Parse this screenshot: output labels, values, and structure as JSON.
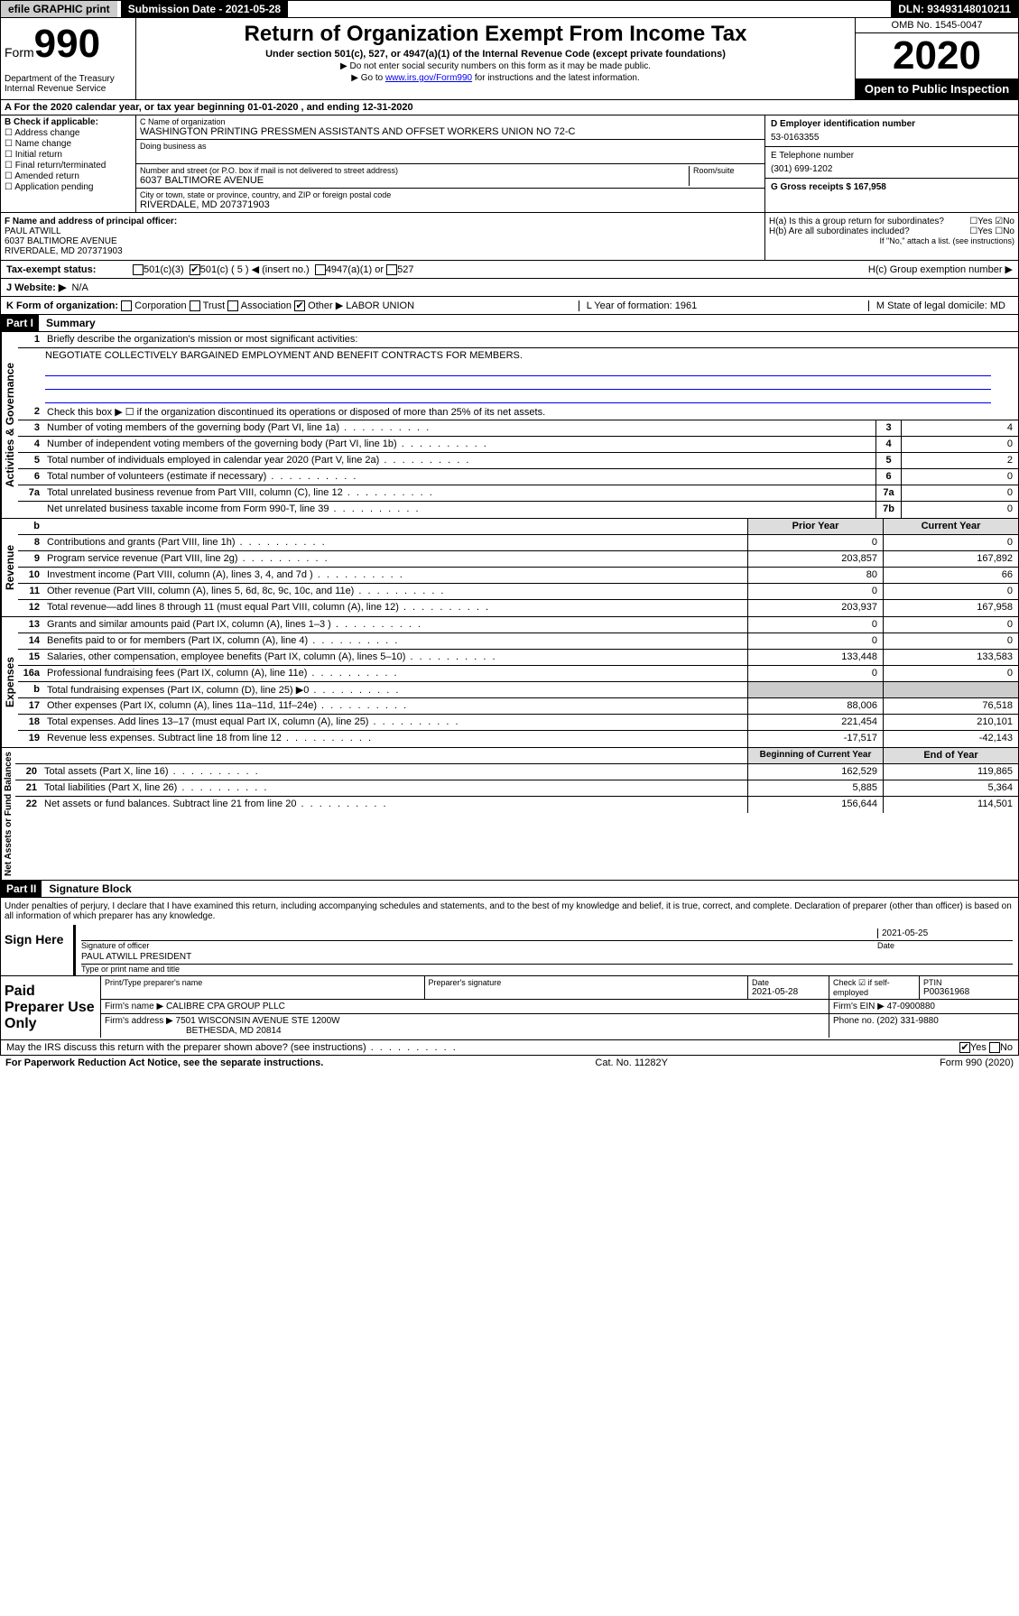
{
  "top": {
    "efile": "efile GRAPHIC print",
    "subdate_lbl": "Submission Date - 2021-05-28",
    "dln": "DLN: 93493148010211"
  },
  "hdr": {
    "form": "Form",
    "n990": "990",
    "title": "Return of Organization Exempt From Income Tax",
    "sub": "Under section 501(c), 527, or 4947(a)(1) of the Internal Revenue Code (except private foundations)",
    "note1": "▶ Do not enter social security numbers on this form as it may be made public.",
    "note2_a": "▶ Go to ",
    "note2_link": "www.irs.gov/Form990",
    "note2_b": " for instructions and the latest information.",
    "dept": "Department of the Treasury\nInternal Revenue Service",
    "omb": "OMB No. 1545-0047",
    "year": "2020",
    "open": "Open to Public Inspection"
  },
  "a": "A   For the 2020 calendar year, or tax year beginning 01-01-2020    , and ending 12-31-2020",
  "b": {
    "hdr": "B Check if applicable:",
    "items": [
      "Address change",
      "Name change",
      "Initial return",
      "Final return/terminated",
      "Amended return",
      "Application pending"
    ]
  },
  "c": {
    "name_lbl": "C Name of organization",
    "name": "WASHINGTON PRINTING PRESSMEN ASSISTANTS AND OFFSET WORKERS UNION NO 72-C",
    "dba_lbl": "Doing business as",
    "addr_lbl": "Number and street (or P.O. box if mail is not delivered to street address)",
    "room_lbl": "Room/suite",
    "addr": "6037 BALTIMORE AVENUE",
    "city_lbl": "City or town, state or province, country, and ZIP or foreign postal code",
    "city": "RIVERDALE, MD  207371903"
  },
  "r": {
    "d_lbl": "D Employer identification number",
    "d": "53-0163355",
    "e_lbl": "E Telephone number",
    "e": "(301) 699-1202",
    "g": "G Gross receipts $ 167,958"
  },
  "f": {
    "lbl": "F  Name and address of principal officer:",
    "name": "PAUL ATWILL",
    "addr": "6037 BALTIMORE AVENUE",
    "city": "RIVERDALE, MD  207371903"
  },
  "h": {
    "a": "H(a)  Is this a group return for subordinates?",
    "b": "H(b)  Are all subordinates included?",
    "note": "If \"No,\" attach a list. (see instructions)",
    "c": "H(c)  Group exemption number ▶"
  },
  "tax": {
    "lbl": "Tax-exempt status:",
    "c3": "501(c)(3)",
    "c": "501(c) ( 5 ) ◀ (insert no.)",
    "a1": "4947(a)(1) or",
    "527": "527"
  },
  "web": {
    "lbl": "J   Website: ▶",
    "val": "N/A"
  },
  "k": {
    "form_lbl": "K Form of organization:",
    "corp": "Corporation",
    "trust": "Trust",
    "assoc": "Association",
    "other": "Other ▶",
    "other_val": "LABOR UNION",
    "l": "L Year of formation: 1961",
    "m": "M State of legal domicile: MD"
  },
  "p1": {
    "bar": "Part I",
    "ttl": "Summary"
  },
  "gov": {
    "side": "Activities & Governance",
    "l1": "Briefly describe the organization's mission or most significant activities:",
    "mission": "NEGOTIATE COLLECTIVELY BARGAINED EMPLOYMENT AND BENEFIT CONTRACTS FOR MEMBERS.",
    "l2": "Check this box ▶ ☐  if the organization discontinued its operations or disposed of more than 25% of its net assets.",
    "rows": [
      {
        "n": "3",
        "d": "Number of voting members of the governing body (Part VI, line 1a)",
        "b": "3",
        "v": "4"
      },
      {
        "n": "4",
        "d": "Number of independent voting members of the governing body (Part VI, line 1b)",
        "b": "4",
        "v": "0"
      },
      {
        "n": "5",
        "d": "Total number of individuals employed in calendar year 2020 (Part V, line 2a)",
        "b": "5",
        "v": "2"
      },
      {
        "n": "6",
        "d": "Total number of volunteers (estimate if necessary)",
        "b": "6",
        "v": "0"
      },
      {
        "n": "7a",
        "d": "Total unrelated business revenue from Part VIII, column (C), line 12",
        "b": "7a",
        "v": "0"
      },
      {
        "n": "",
        "d": "Net unrelated business taxable income from Form 990-T, line 39",
        "b": "7b",
        "v": "0"
      }
    ]
  },
  "rev": {
    "side": "Revenue",
    "hdr_b": "b",
    "hdr_py": "Prior Year",
    "hdr_cy": "Current Year",
    "rows": [
      {
        "n": "8",
        "d": "Contributions and grants (Part VIII, line 1h)",
        "py": "0",
        "cy": "0"
      },
      {
        "n": "9",
        "d": "Program service revenue (Part VIII, line 2g)",
        "py": "203,857",
        "cy": "167,892"
      },
      {
        "n": "10",
        "d": "Investment income (Part VIII, column (A), lines 3, 4, and 7d )",
        "py": "80",
        "cy": "66"
      },
      {
        "n": "11",
        "d": "Other revenue (Part VIII, column (A), lines 5, 6d, 8c, 9c, 10c, and 11e)",
        "py": "0",
        "cy": "0"
      },
      {
        "n": "12",
        "d": "Total revenue—add lines 8 through 11 (must equal Part VIII, column (A), line 12)",
        "py": "203,937",
        "cy": "167,958"
      }
    ]
  },
  "exp": {
    "side": "Expenses",
    "rows": [
      {
        "n": "13",
        "d": "Grants and similar amounts paid (Part IX, column (A), lines 1–3 )",
        "py": "0",
        "cy": "0"
      },
      {
        "n": "14",
        "d": "Benefits paid to or for members (Part IX, column (A), line 4)",
        "py": "0",
        "cy": "0"
      },
      {
        "n": "15",
        "d": "Salaries, other compensation, employee benefits (Part IX, column (A), lines 5–10)",
        "py": "133,448",
        "cy": "133,583"
      },
      {
        "n": "16a",
        "d": "Professional fundraising fees (Part IX, column (A), line 11e)",
        "py": "0",
        "cy": "0"
      },
      {
        "n": "b",
        "d": "Total fundraising expenses (Part IX, column (D), line 25) ▶0",
        "py": "",
        "cy": "",
        "shade": true
      },
      {
        "n": "17",
        "d": "Other expenses (Part IX, column (A), lines 11a–11d, 11f–24e)",
        "py": "88,006",
        "cy": "76,518"
      },
      {
        "n": "18",
        "d": "Total expenses. Add lines 13–17 (must equal Part IX, column (A), line 25)",
        "py": "221,454",
        "cy": "210,101"
      },
      {
        "n": "19",
        "d": "Revenue less expenses. Subtract line 18 from line 12",
        "py": "-17,517",
        "cy": "-42,143"
      }
    ]
  },
  "na": {
    "side": "Net Assets or Fund Balances",
    "hdr_py": "Beginning of Current Year",
    "hdr_cy": "End of Year",
    "rows": [
      {
        "n": "20",
        "d": "Total assets (Part X, line 16)",
        "py": "162,529",
        "cy": "119,865"
      },
      {
        "n": "21",
        "d": "Total liabilities (Part X, line 26)",
        "py": "5,885",
        "cy": "5,364"
      },
      {
        "n": "22",
        "d": "Net assets or fund balances. Subtract line 21 from line 20",
        "py": "156,644",
        "cy": "114,501"
      }
    ]
  },
  "p2": {
    "bar": "Part II",
    "ttl": "Signature Block"
  },
  "sig": {
    "decl": "Under penalties of perjury, I declare that I have examined this return, including accompanying schedules and statements, and to the best of my knowledge and belief, it is true, correct, and complete. Declaration of preparer (other than officer) is based on all information of which preparer has any knowledge.",
    "sign": "Sign Here",
    "sig_lbl": "Signature of officer",
    "date_lbl": "Date",
    "date": "2021-05-25",
    "name": "PAUL ATWILL  PRESIDENT",
    "name_lbl": "Type or print name and title"
  },
  "prep": {
    "lbl": "Paid Preparer Use Only",
    "h1": "Print/Type preparer's name",
    "h2": "Preparer's signature",
    "h3": "Date",
    "h3v": "2021-05-28",
    "h4": "Check ☑ if self-employed",
    "h5": "PTIN",
    "h5v": "P00361968",
    "firm_lbl": "Firm's name    ▶",
    "firm": "CALIBRE CPA GROUP PLLC",
    "ein_lbl": "Firm's EIN ▶",
    "ein": "47-0900880",
    "addr_lbl": "Firm's address ▶",
    "addr": "7501 WISCONSIN AVENUE STE 1200W",
    "addr2": "BETHESDA, MD  20814",
    "ph_lbl": "Phone no.",
    "ph": "(202) 331-9880"
  },
  "foot": {
    "discuss": "May the IRS discuss this return with the preparer shown above? (see instructions)",
    "yes": "Yes",
    "no": "No",
    "pap": "For Paperwork Reduction Act Notice, see the separate instructions.",
    "cat": "Cat. No. 11282Y",
    "form": "Form 990 (2020)"
  }
}
